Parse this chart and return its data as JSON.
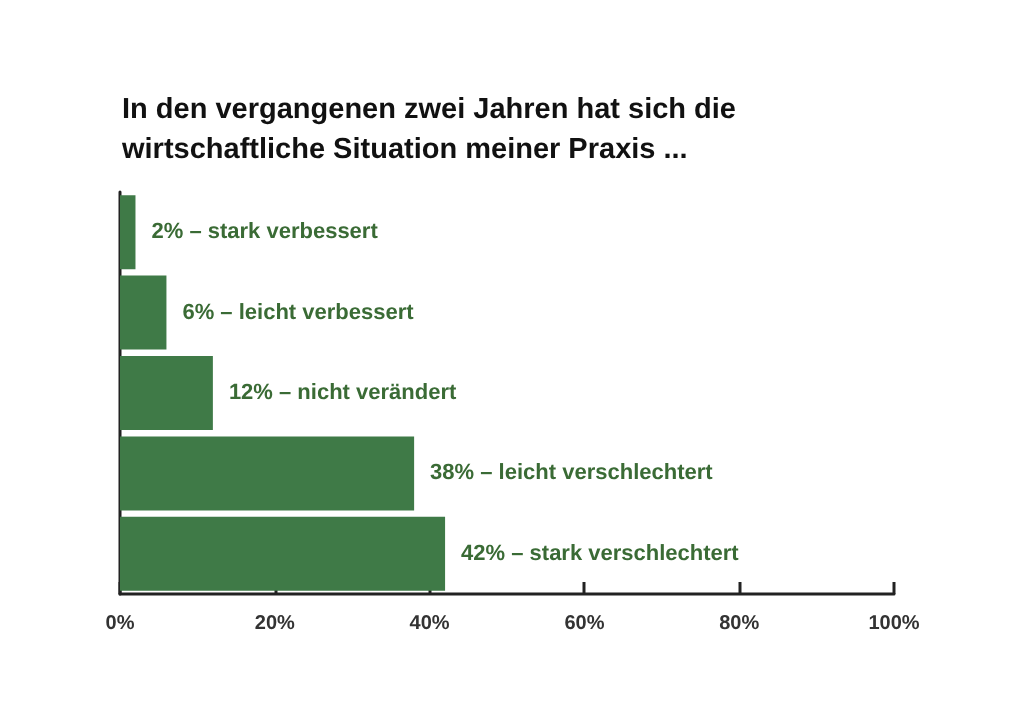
{
  "chart_data": {
    "type": "bar",
    "orientation": "horizontal",
    "title": "In den vergangenen zwei Jahren hat sich die\nwirtschaftliche Situation meiner Praxis ...",
    "categories": [
      null,
      null,
      null,
      null,
      null
    ],
    "values": [
      2,
      6,
      12,
      38,
      42
    ],
    "value_labels": [
      "2% – stark verbessert",
      "6% – leicht verbessert",
      "12% – nicht verändert",
      "38% – leicht verschlechtert",
      "42% – stark verschlechtert"
    ],
    "color": "#3f7a47",
    "xlim": [
      0,
      100
    ],
    "xticks": [
      {
        "value": 0,
        "label": "0%"
      },
      {
        "value": 20,
        "label": "20%"
      },
      {
        "value": 40,
        "label": "40%"
      },
      {
        "value": 60,
        "label": "60%"
      },
      {
        "value": 80,
        "label": "80%"
      },
      {
        "value": 100,
        "label": "100%"
      }
    ],
    "grid": false
  }
}
